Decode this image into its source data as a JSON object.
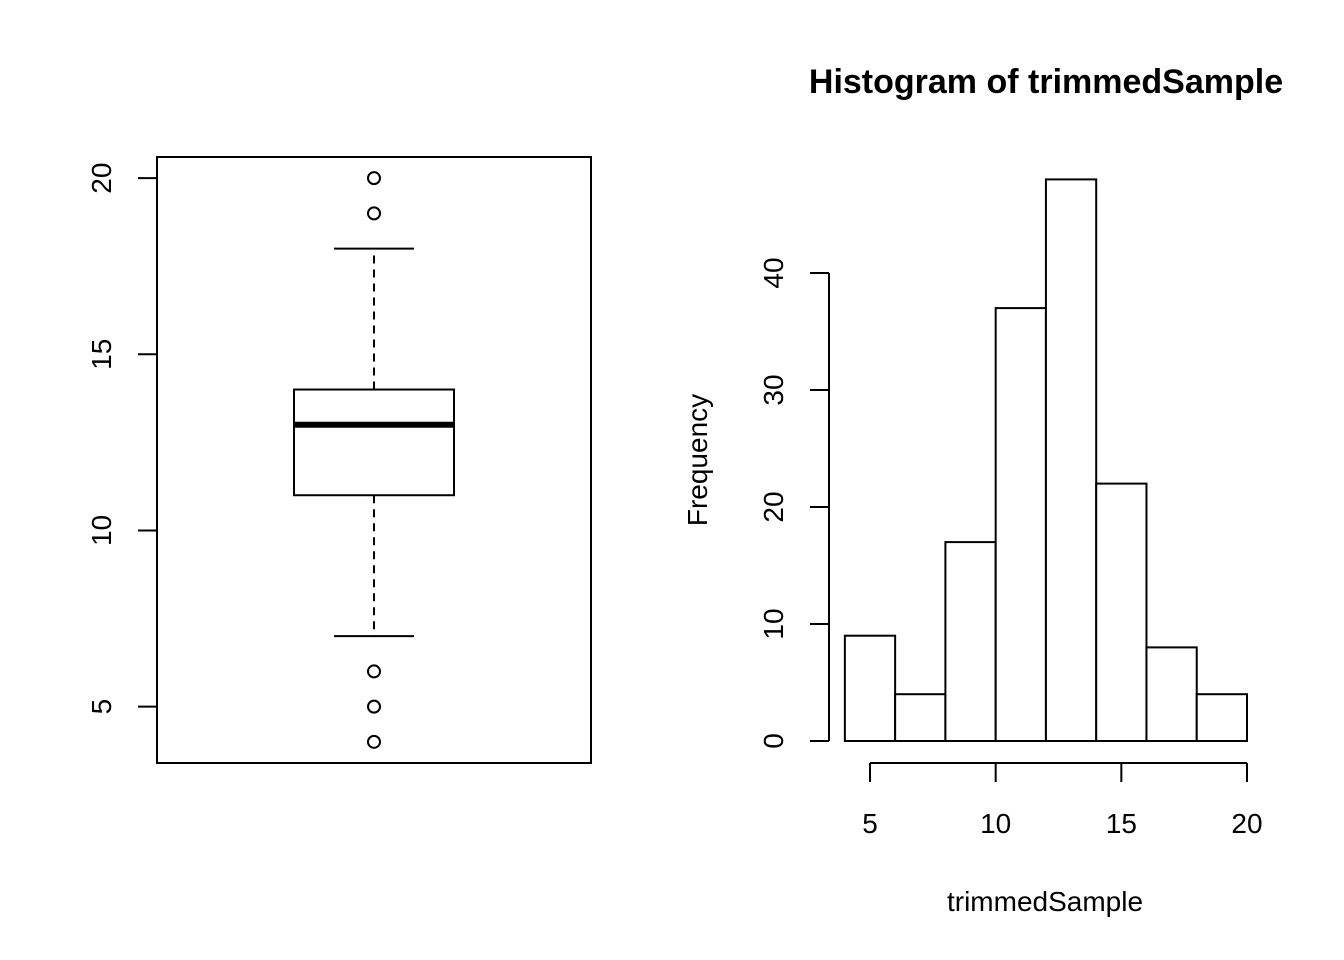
{
  "chart_data": [
    {
      "type": "box",
      "title": "",
      "xlabel": "",
      "ylabel": "",
      "ylim": [
        3.4,
        20.6
      ],
      "y_ticks": [
        5,
        10,
        15,
        20
      ],
      "stats": {
        "whisker_low": 7,
        "q1": 11,
        "median": 13,
        "q3": 14,
        "whisker_high": 18
      },
      "outliers": [
        4,
        5,
        6,
        19,
        20
      ]
    },
    {
      "type": "histogram",
      "title": "Histogram of trimmedSample",
      "xlabel": "trimmedSample",
      "ylabel": "Frequency",
      "bins": [
        [
          4,
          6
        ],
        [
          6,
          8
        ],
        [
          8,
          10
        ],
        [
          10,
          12
        ],
        [
          12,
          14
        ],
        [
          14,
          16
        ],
        [
          16,
          18
        ],
        [
          18,
          20
        ]
      ],
      "values": [
        9,
        4,
        17,
        37,
        48,
        22,
        8,
        4
      ],
      "x_ticks": [
        5,
        10,
        15,
        20
      ],
      "y_ticks": [
        0,
        10,
        20,
        30,
        40
      ]
    }
  ]
}
